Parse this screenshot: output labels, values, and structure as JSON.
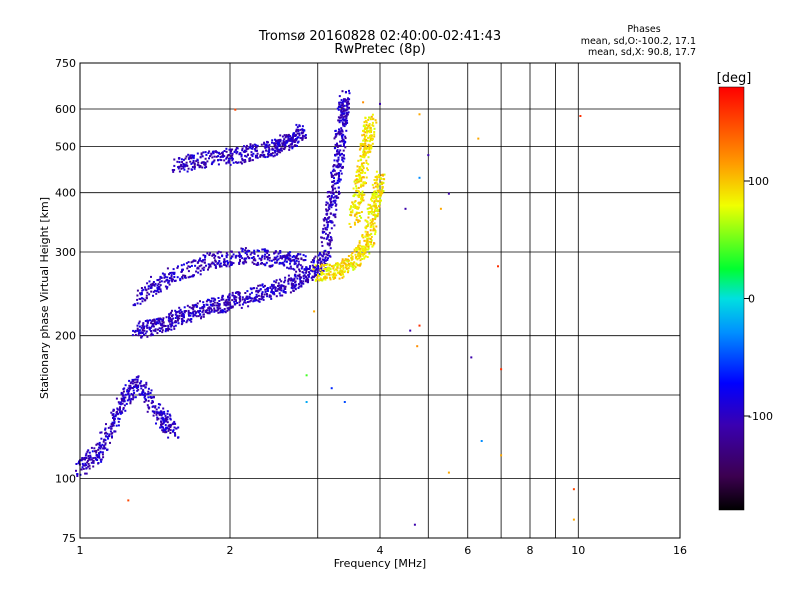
{
  "chart_data": {
    "type": "scatter",
    "title": "Tromsø 20160828 02:40:00-02:41:43",
    "subtitle": "RwPretec (8p)",
    "xlabel": "Frequency [MHz]",
    "ylabel": "Stationary phase Virtual Height [km]",
    "x_scale": "log",
    "y_scale": "log",
    "xlim": [
      1,
      16
    ],
    "ylim": [
      75,
      750
    ],
    "x_ticks": [
      1,
      2,
      4,
      6,
      8,
      10,
      16
    ],
    "x_minor_ticks": [
      3,
      5,
      7,
      9
    ],
    "y_ticks": [
      75,
      100,
      200,
      300,
      400,
      500,
      600,
      750
    ],
    "y_minor_ticks": [
      150
    ],
    "grid": true,
    "phase_stats": {
      "heading": "Phases",
      "line_o": "mean, sd,O:-100.2, 17.1",
      "line_x": "mean, sd,X:  90.8, 17.7"
    },
    "colorbar": {
      "unit": "[deg]",
      "range": [
        -180,
        180
      ],
      "ticks": [
        100,
        0,
        -100
      ],
      "colormap": "rainbow (black-violet-blue-cyan-green-yellow-orange-red)"
    },
    "series": [
      {
        "name": "O",
        "phase_deg": -100,
        "segments": [
          {
            "x": [
              1.0,
              1.1,
              1.2,
              1.3,
              1.45,
              1.55
            ],
            "y": [
              105,
              115,
              140,
              160,
              135,
              125
            ]
          },
          {
            "x": [
              1.3,
              1.45,
              1.6,
              1.8,
              2.0,
              2.3,
              2.6,
              2.9,
              3.1
            ],
            "y": [
              205,
              210,
              220,
              230,
              235,
              245,
              255,
              270,
              290
            ]
          },
          {
            "x": [
              1.3,
              1.5,
              1.8,
              2.1,
              2.5,
              2.8
            ],
            "y": [
              240,
              265,
              285,
              295,
              290,
              285
            ]
          },
          {
            "x": [
              1.55,
              1.8,
              2.1,
              2.4,
              2.6,
              2.8
            ],
            "y": [
              455,
              470,
              480,
              495,
              510,
              540
            ]
          },
          {
            "x": [
              3.1,
              3.2,
              3.3,
              3.35,
              3.4
            ],
            "y": [
              300,
              380,
              460,
              560,
              640
            ]
          }
        ]
      },
      {
        "name": "X",
        "phase_deg": 90,
        "segments": [
          {
            "x": [
              3.0,
              3.3,
              3.6,
              3.8,
              3.9,
              4.0
            ],
            "y": [
              270,
              275,
              290,
              320,
              380,
              430
            ]
          },
          {
            "x": [
              3.55,
              3.65,
              3.75,
              3.85
            ],
            "y": [
              350,
              420,
              500,
              570
            ]
          }
        ]
      }
    ],
    "scattered_points": [
      {
        "x": 1.25,
        "y": 90,
        "phase_deg": 150
      },
      {
        "x": 2.05,
        "y": 598,
        "phase_deg": 150
      },
      {
        "x": 2.85,
        "y": 165,
        "phase_deg": 40
      },
      {
        "x": 2.85,
        "y": 145,
        "phase_deg": -20
      },
      {
        "x": 2.95,
        "y": 225,
        "phase_deg": 110
      },
      {
        "x": 3.2,
        "y": 155,
        "phase_deg": -60
      },
      {
        "x": 3.4,
        "y": 145,
        "phase_deg": -50
      },
      {
        "x": 3.7,
        "y": 620,
        "phase_deg": 120
      },
      {
        "x": 4.0,
        "y": 615,
        "phase_deg": -110
      },
      {
        "x": 4.5,
        "y": 370,
        "phase_deg": -110
      },
      {
        "x": 4.6,
        "y": 205,
        "phase_deg": -110
      },
      {
        "x": 4.8,
        "y": 210,
        "phase_deg": 160
      },
      {
        "x": 4.8,
        "y": 430,
        "phase_deg": -30
      },
      {
        "x": 4.8,
        "y": 585,
        "phase_deg": 110
      },
      {
        "x": 4.75,
        "y": 190,
        "phase_deg": 120
      },
      {
        "x": 4.7,
        "y": 80,
        "phase_deg": -110
      },
      {
        "x": 5.0,
        "y": 480,
        "phase_deg": -110
      },
      {
        "x": 5.3,
        "y": 370,
        "phase_deg": 110
      },
      {
        "x": 5.5,
        "y": 398,
        "phase_deg": -110
      },
      {
        "x": 5.5,
        "y": 103,
        "phase_deg": 110
      },
      {
        "x": 6.1,
        "y": 180,
        "phase_deg": -110
      },
      {
        "x": 6.3,
        "y": 520,
        "phase_deg": 110
      },
      {
        "x": 6.4,
        "y": 120,
        "phase_deg": -30
      },
      {
        "x": 6.9,
        "y": 280,
        "phase_deg": 160
      },
      {
        "x": 7.0,
        "y": 170,
        "phase_deg": 160
      },
      {
        "x": 7.0,
        "y": 112,
        "phase_deg": 110
      },
      {
        "x": 9.8,
        "y": 95,
        "phase_deg": 150
      },
      {
        "x": 9.8,
        "y": 82,
        "phase_deg": 110
      },
      {
        "x": 10.1,
        "y": 580,
        "phase_deg": 160
      }
    ]
  }
}
